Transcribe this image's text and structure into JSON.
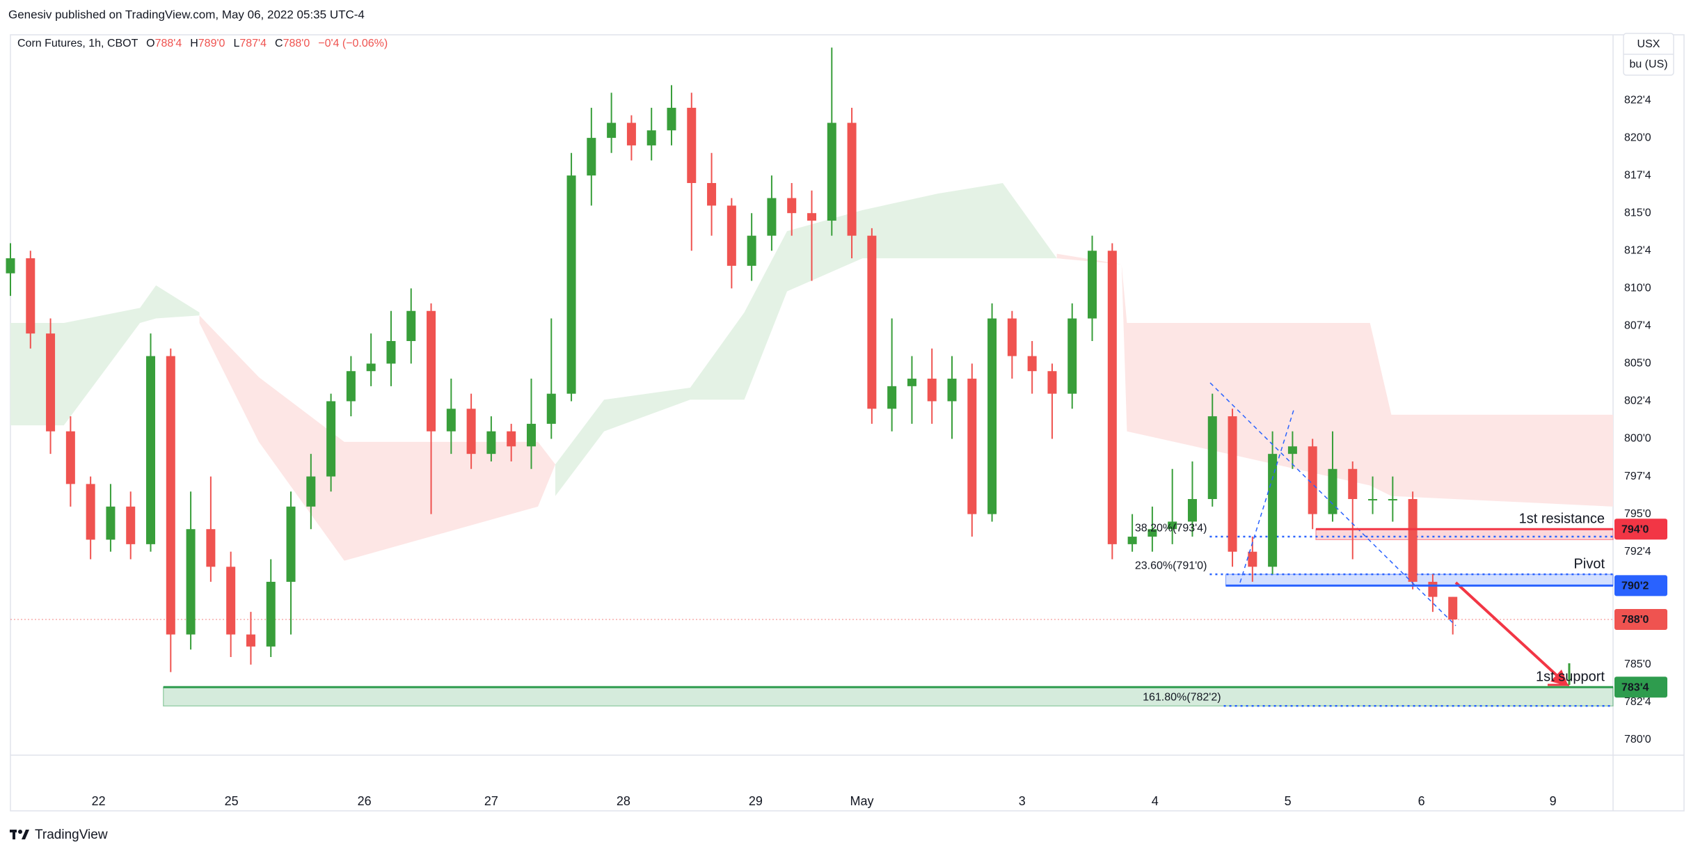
{
  "header": {
    "publisher": "Genesiv published on TradingView.com, May 06, 2022 05:35 UTC-4",
    "currency": "USX",
    "unit": "bu (US)"
  },
  "footer": {
    "brand": "TradingView"
  },
  "chart_data": {
    "type": "candlestick",
    "title": "Corn Futures, 1h, CBOT",
    "ohlc": [
      {
        "key": "O",
        "text": "788'4"
      },
      {
        "key": "H",
        "text": "789'0"
      },
      {
        "key": "L",
        "text": "787'4"
      },
      {
        "key": "C",
        "text": "788'0"
      }
    ],
    "change": "−0'4 (−0.06%)",
    "xlim": [
      0,
      240
    ],
    "ylim": [
      778.98,
      826.85
    ],
    "xticks": [
      {
        "value": 13.2,
        "label": "22"
      },
      {
        "value": 33.1,
        "label": "25"
      },
      {
        "value": 53,
        "label": "26"
      },
      {
        "value": 72,
        "label": "27"
      },
      {
        "value": 91.8,
        "label": "28"
      },
      {
        "value": 111.6,
        "label": "29"
      },
      {
        "value": 127.5,
        "label": "May"
      },
      {
        "value": 151.5,
        "label": "3"
      },
      {
        "value": 171.4,
        "label": "4"
      },
      {
        "value": 191.3,
        "label": "5"
      },
      {
        "value": 211.3,
        "label": "6"
      },
      {
        "value": 231,
        "label": "9"
      }
    ],
    "yticks": [
      {
        "value": 780,
        "label": "780'0"
      },
      {
        "value": 782.5,
        "label": "782'4"
      },
      {
        "value": 785,
        "label": "785'0"
      },
      {
        "value": 787.5,
        "label": "787'4"
      },
      {
        "value": 790,
        "label": "790'0"
      },
      {
        "value": 792.5,
        "label": "792'4"
      },
      {
        "value": 795,
        "label": "795'0"
      },
      {
        "value": 797.5,
        "label": "797'4"
      },
      {
        "value": 800,
        "label": "800'0"
      },
      {
        "value": 802.5,
        "label": "802'4"
      },
      {
        "value": 805,
        "label": "805'0"
      },
      {
        "value": 807.5,
        "label": "807'4"
      },
      {
        "value": 810,
        "label": "810'0"
      },
      {
        "value": 812.5,
        "label": "812'4"
      },
      {
        "value": 815,
        "label": "815'0"
      },
      {
        "value": 817.5,
        "label": "817'4"
      },
      {
        "value": 820,
        "label": "820'0"
      },
      {
        "value": 822.5,
        "label": "822'4"
      }
    ],
    "grid": false,
    "candles": {
      "up_color": "#389e3a",
      "down_color": "#ef5350",
      "x": [
        0,
        3,
        6,
        9,
        12,
        15,
        18,
        21,
        24,
        27,
        30,
        33,
        36,
        39,
        42,
        45,
        48,
        51,
        54,
        57,
        60,
        63,
        66,
        69,
        72,
        75,
        78,
        81,
        84,
        87,
        90,
        93,
        96,
        99,
        102,
        105,
        108,
        111,
        114,
        117,
        120,
        123,
        126,
        129,
        132,
        135,
        138,
        141,
        144,
        147,
        150,
        153,
        156,
        159,
        162,
        165,
        168,
        171,
        174,
        177,
        180,
        183,
        186,
        189,
        192,
        195,
        198,
        201,
        204,
        207,
        210,
        213,
        216
      ],
      "open": [
        811,
        812,
        807,
        800.5,
        797,
        793.3,
        795.5,
        793,
        805.5,
        787,
        794,
        791.5,
        787,
        786.2,
        790.5,
        795.5,
        797.5,
        802.5,
        804.5,
        805,
        806.5,
        808.5,
        800.5,
        802,
        799,
        800.5,
        799.5,
        801,
        803,
        817.5,
        820,
        821,
        819.5,
        820.5,
        822,
        817,
        815.5,
        811.5,
        813.5,
        816,
        815,
        814.5,
        821,
        813.5,
        802,
        803.5,
        804,
        802.5,
        804,
        795,
        808,
        805.5,
        804.5,
        803,
        808,
        812.5,
        793,
        793.5,
        794,
        794.5,
        796,
        801.5,
        792.5,
        791.5,
        799,
        799.5,
        795,
        798,
        796,
        796,
        796,
        790.5,
        789.5
      ],
      "high": [
        813,
        812.5,
        808,
        801.5,
        797.5,
        797,
        796.5,
        807,
        806,
        796.5,
        797.5,
        792.5,
        788.5,
        792,
        796.5,
        799,
        803,
        805.5,
        807,
        808.5,
        810,
        809,
        804,
        803,
        801.5,
        801,
        804,
        808,
        819,
        822,
        823,
        821.5,
        822,
        823.5,
        823,
        819,
        816,
        815,
        817.5,
        817,
        816.5,
        826,
        822,
        814,
        808,
        805.5,
        806,
        805.5,
        805,
        809,
        808.5,
        806.5,
        805,
        809,
        813.5,
        813,
        795,
        795.5,
        798,
        798.5,
        803,
        802,
        793.5,
        800.5,
        800.5,
        800,
        800.5,
        798.5,
        797.5,
        797.5,
        796.5,
        791,
        789.5
      ],
      "low": [
        809.5,
        806,
        799,
        795.5,
        792,
        792.5,
        792,
        792.5,
        784.5,
        786,
        790.5,
        785.5,
        785,
        785.5,
        787,
        794,
        796.5,
        801.5,
        803.5,
        803.5,
        805,
        795,
        799,
        798,
        798.5,
        798.5,
        798,
        800,
        802.5,
        815.5,
        819,
        818.5,
        818.5,
        819.5,
        812.5,
        813.5,
        810,
        810.5,
        812.5,
        813.5,
        810.5,
        813.5,
        812,
        801,
        800.5,
        801,
        801,
        800,
        793.5,
        794.5,
        804,
        803,
        800,
        802,
        806.5,
        792,
        792.5,
        792.5,
        793,
        793.5,
        795.5,
        791.5,
        790.5,
        791,
        798,
        794,
        794.5,
        792,
        795,
        794.5,
        790,
        788.5,
        787
      ],
      "close": [
        812,
        807,
        800.5,
        797,
        793.3,
        795.5,
        793,
        805.5,
        787,
        794,
        791.5,
        787,
        786.2,
        790.5,
        795.5,
        797.5,
        802.5,
        804.5,
        805,
        806.5,
        808.5,
        800.5,
        802,
        799,
        800.5,
        799.5,
        801,
        803,
        817.5,
        820,
        821,
        819.5,
        820.5,
        822,
        817,
        815.5,
        811.5,
        813.5,
        816,
        815,
        814.5,
        821,
        813.5,
        802,
        803.5,
        804,
        802.5,
        804,
        795,
        808,
        805.5,
        804.5,
        803,
        808,
        812.5,
        793,
        793.5,
        794,
        794.5,
        796,
        801.5,
        792.5,
        791.5,
        799,
        799.5,
        795,
        798,
        796,
        796,
        796,
        790.5,
        789.5,
        788
      ]
    },
    "clouds": [
      {
        "color": "#e4f2e5",
        "x": [
          0,
          8,
          19.4,
          21.8,
          28.3
        ],
        "upper": [
          807.7,
          807.7,
          808.7,
          810.2,
          808.4
        ],
        "lower": [
          800.9,
          800.9,
          807.7,
          808,
          808.2
        ]
      },
      {
        "color": "#fde6e5",
        "x": [
          28.3,
          37.2,
          50,
          79,
          81.6
        ],
        "upper": [
          808.2,
          804.1,
          799.8,
          799.8,
          798.3
        ],
        "lower": [
          807.7,
          799.8,
          791.9,
          795.5,
          798.3
        ]
      },
      {
        "color": "#e4f2e5",
        "x": [
          81.6,
          88.9,
          101.8,
          109.9,
          116.3,
          127.6,
          138.9,
          148.6,
          156.7
        ],
        "upper": [
          798.3,
          802.6,
          803.4,
          808.4,
          813.8,
          815.2,
          816.3,
          817,
          812
        ],
        "lower": [
          796.2,
          800.5,
          802.6,
          802.6,
          809.8,
          812,
          812,
          812,
          812
        ]
      },
      {
        "color": "#fde6e5",
        "x": [
          156.7,
          166.4,
          167.2,
          203.6,
          206.8,
          240
        ],
        "upper": [
          812.3,
          811.6,
          807.7,
          807.7,
          801.6,
          801.6
        ],
        "lower": [
          812,
          811.6,
          800.5,
          796.9,
          796.2,
          795.5
        ]
      }
    ],
    "levels": [
      {
        "name": "1st resistance",
        "value": 794,
        "label": "794'0",
        "zone": [
          793.3,
          794
        ],
        "x_start": 195.5,
        "color": "#f23645"
      },
      {
        "name": "Pivot",
        "value": 790.25,
        "label": "790'2",
        "zone": [
          790.25,
          791
        ],
        "x_start": 182,
        "color": "#2962ff"
      },
      {
        "name": "1st support",
        "value": 783.5,
        "label": "783'4",
        "zone": [
          782.25,
          783.5
        ],
        "x_start": 22.9,
        "color": "#2e9c4e"
      }
    ],
    "fibs": [
      {
        "value": 793.5,
        "label": "38.20%(793'4)",
        "x_start": 179.6
      },
      {
        "value": 791,
        "label": "23.60%(791'0)",
        "x_start": 179.6
      },
      {
        "value": 782.25,
        "label": "161.80%(782'2)",
        "x_start": 181.7
      }
    ],
    "fib_color": "#2962ff",
    "last": {
      "value": 788,
      "label": "788'0",
      "color": "#ef5350"
    }
  }
}
